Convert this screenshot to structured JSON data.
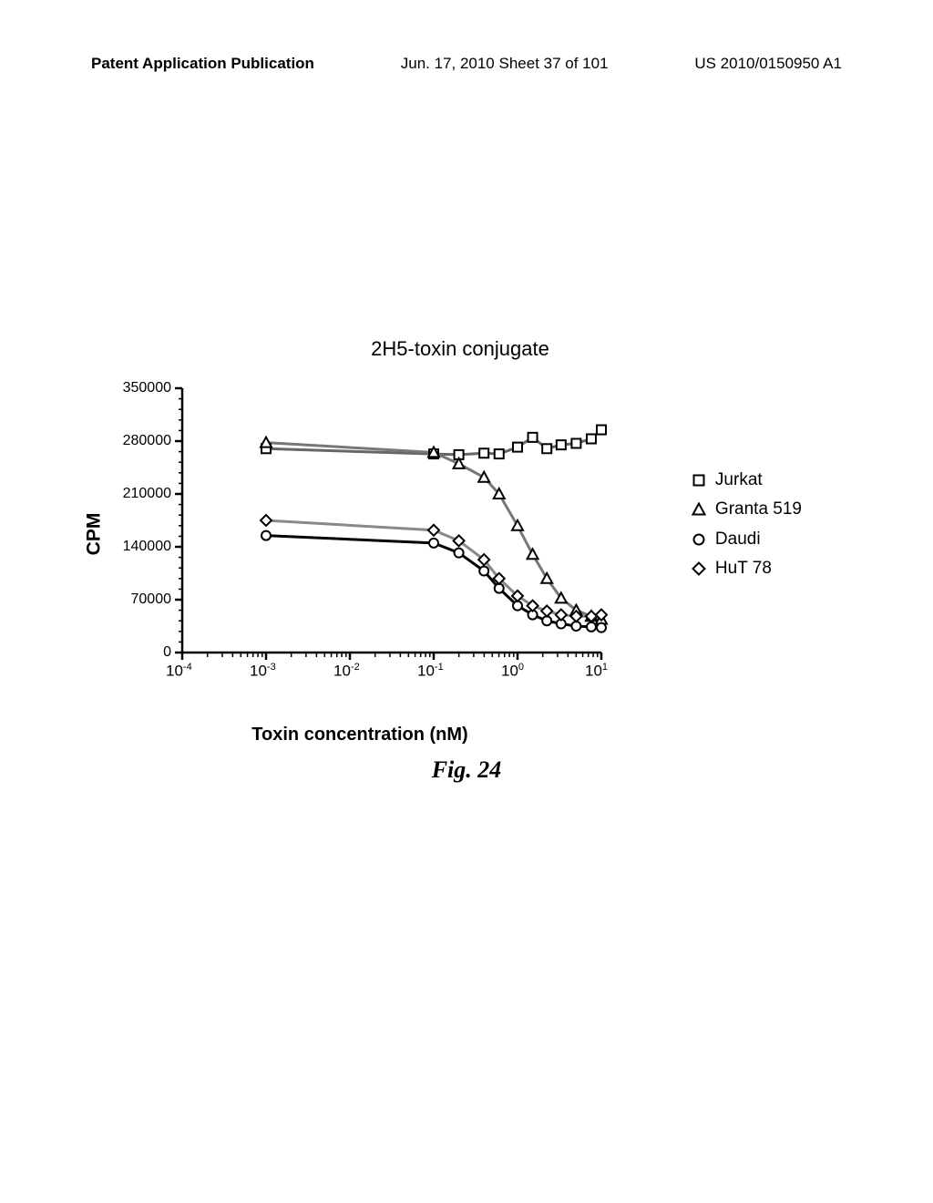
{
  "header": {
    "left": "Patent Application Publication",
    "center": "Jun. 17, 2010  Sheet 37 of 101",
    "right": "US 2010/0150950 A1"
  },
  "chart": {
    "type": "line",
    "title": "2H5-toxin conjugate",
    "ylabel": "CPM",
    "xlabel": "Toxin concentration (nM)",
    "ylim": [
      0,
      350000
    ],
    "ytick_step": 70000,
    "yticks": [
      0,
      70000,
      140000,
      210000,
      280000,
      350000
    ],
    "xlim_exp": [
      -4,
      1
    ],
    "xticks_exp": [
      -4,
      -3,
      -2,
      -1,
      0,
      1
    ],
    "background_color": "#ffffff",
    "axis_color": "#000000",
    "line_width": 3,
    "marker_size": 10,
    "title_fontsize": 22,
    "label_fontsize": 20,
    "tick_fontsize": 16,
    "legend_fontsize": 19,
    "series": [
      {
        "name": "Jurkat",
        "marker": "square",
        "color": "#000000",
        "line_color": "#666666",
        "x_exp": [
          -3,
          -1.0,
          -0.7,
          -0.4,
          -0.22,
          0.0,
          0.18,
          0.35,
          0.52,
          0.7,
          0.88,
          1.0
        ],
        "y": [
          270000,
          263000,
          262000,
          264000,
          263000,
          272000,
          285000,
          270000,
          275000,
          277000,
          283000,
          295000
        ]
      },
      {
        "name": "Granta 519",
        "marker": "triangle",
        "color": "#000000",
        "line_color": "#777777",
        "x_exp": [
          -3,
          -1.0,
          -0.7,
          -0.4,
          -0.22,
          0.0,
          0.18,
          0.35,
          0.52,
          0.7,
          0.88,
          1.0
        ],
        "y": [
          278000,
          265000,
          250000,
          232000,
          210000,
          168000,
          130000,
          98000,
          72000,
          56000,
          48000,
          44000
        ]
      },
      {
        "name": "Daudi",
        "marker": "circle",
        "color": "#000000",
        "line_color": "#000000",
        "x_exp": [
          -3,
          -1.0,
          -0.7,
          -0.4,
          -0.22,
          0.0,
          0.18,
          0.35,
          0.52,
          0.7,
          0.88,
          1.0
        ],
        "y": [
          155000,
          145000,
          132000,
          108000,
          85000,
          62000,
          50000,
          42000,
          38000,
          35000,
          34000,
          33000
        ]
      },
      {
        "name": "HuT 78",
        "marker": "diamond",
        "color": "#000000",
        "line_color": "#888888",
        "x_exp": [
          -3,
          -1.0,
          -0.7,
          -0.4,
          -0.22,
          0.0,
          0.18,
          0.35,
          0.52,
          0.7,
          0.88,
          1.0
        ],
        "y": [
          175000,
          162000,
          148000,
          123000,
          98000,
          75000,
          62000,
          55000,
          50000,
          48000,
          48000,
          50000
        ]
      }
    ]
  },
  "figure_label": "Fig. 24"
}
